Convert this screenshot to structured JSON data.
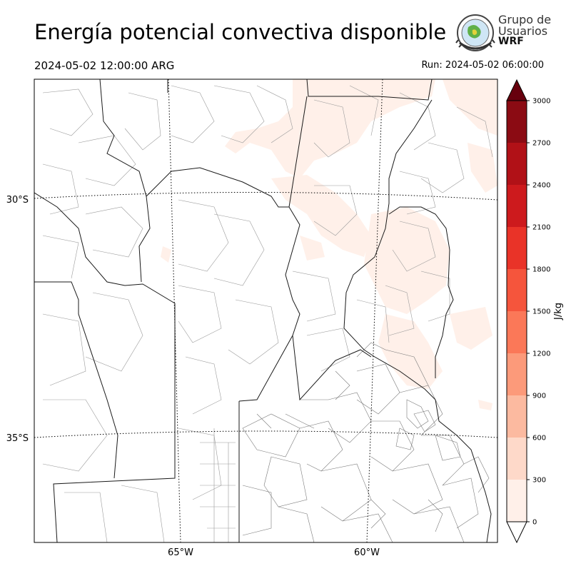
{
  "header": {
    "title": "Energía potencial convectiva disponible",
    "valid_time": "2024-05-02 12:00:00 ARG",
    "run_time": "Run: 2024-05-02 06:00:00"
  },
  "logo": {
    "line1": "Grupo de",
    "line2": "Usuarios",
    "line3": "WRF"
  },
  "map": {
    "lat_labels": [
      "30°S",
      "35°S"
    ],
    "lon_labels": [
      "65°W",
      "60°W"
    ]
  },
  "colorbar": {
    "label": "J/kg",
    "ticks": [
      "0",
      "300",
      "600",
      "900",
      "1200",
      "1500",
      "1800",
      "2100",
      "2400",
      "2700",
      "3000"
    ],
    "colors": [
      "#fff0e9",
      "#fed9c9",
      "#fcbaa0",
      "#fc9a7a",
      "#fb7858",
      "#f5553c",
      "#e93328",
      "#cd1a1d",
      "#b11117",
      "#8b0b13"
    ],
    "under_color": "#ffffff",
    "over_color": "#67000d"
  }
}
